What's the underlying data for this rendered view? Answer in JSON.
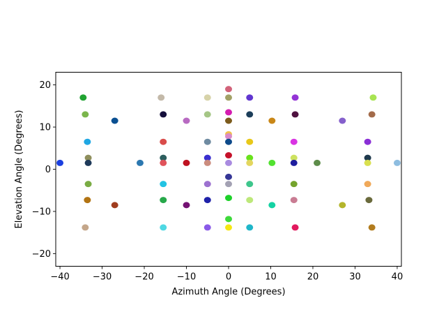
{
  "chart_data": {
    "type": "scatter",
    "title": "",
    "xlabel": "Azimuth Angle (Degrees)",
    "ylabel": "Elevation Angle (Degrees)",
    "xlim": [
      -41,
      41
    ],
    "ylim": [
      -23,
      23
    ],
    "xticks": [
      -40,
      -30,
      -20,
      -10,
      0,
      10,
      20,
      30,
      40
    ],
    "yticks": [
      -20,
      -10,
      0,
      10,
      20
    ],
    "xtick_labels": [
      "−40",
      "−30",
      "−20",
      "−10",
      "0",
      "10",
      "20",
      "30",
      "40"
    ],
    "ytick_labels": [
      "−20",
      "−10",
      "0",
      "10",
      "20"
    ],
    "grid": false,
    "legend": "none",
    "points": [
      {
        "x": -40,
        "y": 1.5,
        "color": "#1a3fe0"
      },
      {
        "x": -34.5,
        "y": 17,
        "color": "#21a332"
      },
      {
        "x": -34,
        "y": 13,
        "color": "#7bb64c"
      },
      {
        "x": -33.5,
        "y": 6.5,
        "color": "#1fa7e3"
      },
      {
        "x": -33.3,
        "y": 2.7,
        "color": "#8f8f5d"
      },
      {
        "x": -33.3,
        "y": 1.5,
        "color": "#1e3a5a"
      },
      {
        "x": -33.3,
        "y": -3.5,
        "color": "#7aac44"
      },
      {
        "x": -33.5,
        "y": -7.3,
        "color": "#b27413"
      },
      {
        "x": -34,
        "y": -13.8,
        "color": "#c4a68a"
      },
      {
        "x": -27,
        "y": 11.5,
        "color": "#0a4f91"
      },
      {
        "x": -27,
        "y": -8.5,
        "color": "#a03d1e"
      },
      {
        "x": -21,
        "y": 1.5,
        "color": "#2c78b0"
      },
      {
        "x": -16,
        "y": 17,
        "color": "#c3b9a9"
      },
      {
        "x": -15.5,
        "y": 13,
        "color": "#150f3b"
      },
      {
        "x": -15.5,
        "y": 6.5,
        "color": "#d94c4a"
      },
      {
        "x": -15.5,
        "y": 2.7,
        "color": "#2c5e5e"
      },
      {
        "x": -15.5,
        "y": 1.5,
        "color": "#e0535b"
      },
      {
        "x": -15.5,
        "y": -3.5,
        "color": "#22c3e3"
      },
      {
        "x": -15.5,
        "y": -7.3,
        "color": "#27a84a"
      },
      {
        "x": -15.5,
        "y": -13.8,
        "color": "#4fd8e3"
      },
      {
        "x": -10,
        "y": 11.5,
        "color": "#b86ac2"
      },
      {
        "x": -10,
        "y": 1.5,
        "color": "#bf1221"
      },
      {
        "x": -10,
        "y": -8.5,
        "color": "#741273"
      },
      {
        "x": -5,
        "y": 17,
        "color": "#d7d3a9"
      },
      {
        "x": -5,
        "y": 13,
        "color": "#a5c686"
      },
      {
        "x": -5,
        "y": 6.5,
        "color": "#6f8ba1"
      },
      {
        "x": -5,
        "y": 2.7,
        "color": "#3a2fcf"
      },
      {
        "x": -5,
        "y": 1.5,
        "color": "#cb8c7e"
      },
      {
        "x": -5,
        "y": -3.5,
        "color": "#9d72d0"
      },
      {
        "x": -5,
        "y": -7.3,
        "color": "#1f22a9"
      },
      {
        "x": -5,
        "y": -13.8,
        "color": "#8a5ae8"
      },
      {
        "x": 0,
        "y": 19,
        "color": "#d2637a"
      },
      {
        "x": 0,
        "y": 17,
        "color": "#a2a166"
      },
      {
        "x": 0,
        "y": 13.5,
        "color": "#d41cb0"
      },
      {
        "x": 0,
        "y": 11.5,
        "color": "#7c5b1c"
      },
      {
        "x": 0,
        "y": 8.3,
        "color": "#f0c04c"
      },
      {
        "x": 0,
        "y": 7.8,
        "color": "#d98ac9"
      },
      {
        "x": 0,
        "y": 6.5,
        "color": "#0e4a8a"
      },
      {
        "x": 0,
        "y": 3.3,
        "color": "#c5112a"
      },
      {
        "x": 0,
        "y": 1.5,
        "color": "#a98be0"
      },
      {
        "x": 0,
        "y": -1.8,
        "color": "#353696"
      },
      {
        "x": 0,
        "y": -3.5,
        "color": "#a3a1b3"
      },
      {
        "x": 0,
        "y": -6.8,
        "color": "#1ed12a"
      },
      {
        "x": 0,
        "y": -11.8,
        "color": "#3ed93b"
      },
      {
        "x": 0,
        "y": -13.8,
        "color": "#f5e713"
      },
      {
        "x": 5,
        "y": 17,
        "color": "#6136d0"
      },
      {
        "x": 5,
        "y": 13,
        "color": "#1c3e5a"
      },
      {
        "x": 5,
        "y": 6.5,
        "color": "#e8c819"
      },
      {
        "x": 5,
        "y": 2.7,
        "color": "#69e21c"
      },
      {
        "x": 5,
        "y": 1.5,
        "color": "#e3d65e"
      },
      {
        "x": 5,
        "y": -3.5,
        "color": "#3ec68c"
      },
      {
        "x": 5,
        "y": -7.3,
        "color": "#bde87a"
      },
      {
        "x": 5,
        "y": -13.8,
        "color": "#1fb6c9"
      },
      {
        "x": 10.3,
        "y": 11.5,
        "color": "#c98717"
      },
      {
        "x": 10.3,
        "y": 1.5,
        "color": "#52e230"
      },
      {
        "x": 10.3,
        "y": -8.5,
        "color": "#15d2a3"
      },
      {
        "x": 15.8,
        "y": 17,
        "color": "#9434d6"
      },
      {
        "x": 15.8,
        "y": 13,
        "color": "#4f1140"
      },
      {
        "x": 15.5,
        "y": 6.5,
        "color": "#d933e3"
      },
      {
        "x": 15.5,
        "y": 2.7,
        "color": "#cde260"
      },
      {
        "x": 15.5,
        "y": 1.5,
        "color": "#1e1d9e"
      },
      {
        "x": 15.5,
        "y": -3.5,
        "color": "#74a32c"
      },
      {
        "x": 15.5,
        "y": -7.3,
        "color": "#c97c93"
      },
      {
        "x": 15.8,
        "y": -13.8,
        "color": "#e2195e"
      },
      {
        "x": 21,
        "y": 1.5,
        "color": "#5d8c4a"
      },
      {
        "x": 27,
        "y": 11.5,
        "color": "#8560cc"
      },
      {
        "x": 27,
        "y": -8.5,
        "color": "#b4b52c"
      },
      {
        "x": 34.3,
        "y": 17,
        "color": "#a8e452"
      },
      {
        "x": 34,
        "y": 13,
        "color": "#a36b4a"
      },
      {
        "x": 33,
        "y": 6.5,
        "color": "#8a2fd6"
      },
      {
        "x": 33,
        "y": 2.7,
        "color": "#1f3a4d"
      },
      {
        "x": 33,
        "y": 1.5,
        "color": "#d9e04f"
      },
      {
        "x": 33,
        "y": -3.5,
        "color": "#f0a95a"
      },
      {
        "x": 33.3,
        "y": -7.3,
        "color": "#6a6a3c"
      },
      {
        "x": 34,
        "y": -13.8,
        "color": "#b27c1e"
      },
      {
        "x": 40,
        "y": 1.5,
        "color": "#8ebde0"
      }
    ]
  }
}
